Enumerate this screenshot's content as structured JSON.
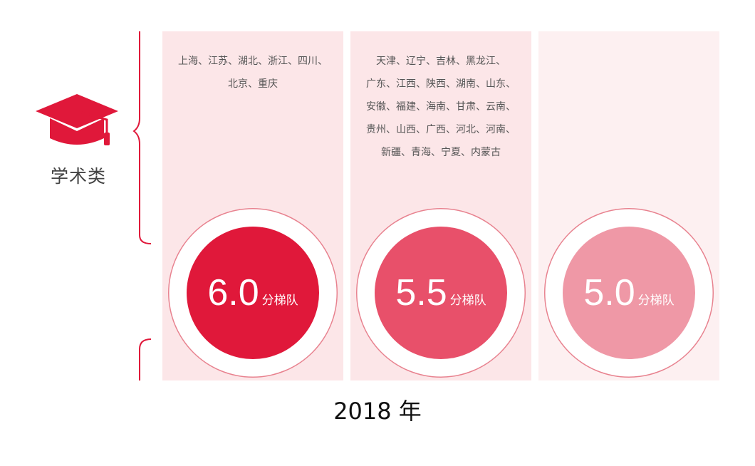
{
  "category": {
    "label": "学术类",
    "icon": "graduation-cap-icon",
    "color": "#e0183a"
  },
  "tiers": [
    {
      "score": "6.0",
      "unit": "分梯队",
      "provinces": "上海、江苏、湖北、浙江、四川、\n北京、重庆",
      "color": "#e0183a"
    },
    {
      "score": "5.5",
      "unit": "分梯队",
      "provinces": "天津、辽宁、吉林、黑龙江、\n广东、江西、陕西、湖南、山东、\n安徽、福建、海南、甘肃、云南、\n贵州、山西、广西、河北、河南、\n新疆、青海、宁夏、内蒙古",
      "color": "#e8506a"
    },
    {
      "score": "5.0",
      "unit": "分梯队",
      "provinces": "",
      "color": "#ef98a6"
    }
  ],
  "year_label": "2018 年"
}
